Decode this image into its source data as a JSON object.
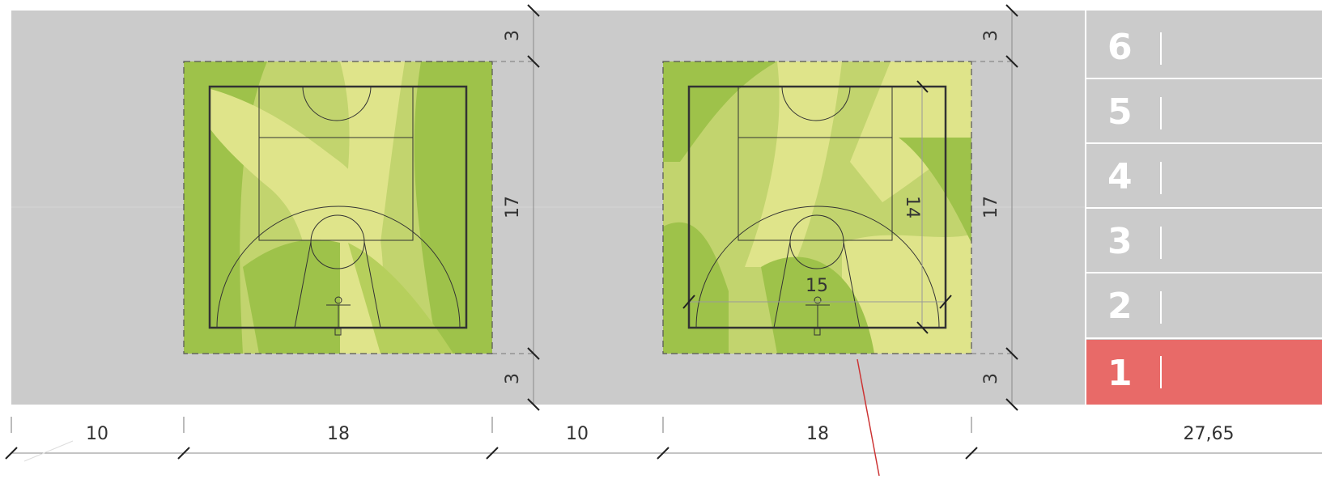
{
  "colors": {
    "ground": "#cbcbcb",
    "court_dark": "#9ec24a",
    "court_mid": "#c2d46e",
    "court_light": "#dfe48a",
    "lines": "#333333",
    "lane_active": "#e86a68",
    "lane_text": "#ffffff",
    "marker": "#cc3333"
  },
  "dimensions": {
    "bottom": [
      "10",
      "18",
      "10",
      "18",
      "27,65"
    ],
    "vertical_left": [
      "3",
      "17",
      "3"
    ],
    "vertical_right": [
      "3",
      "17",
      "3"
    ],
    "court_inner_width": "15",
    "court_inner_height": "14"
  },
  "track": {
    "lanes": [
      "6",
      "5",
      "4",
      "3",
      "2",
      "1"
    ],
    "active_lane": "1"
  }
}
